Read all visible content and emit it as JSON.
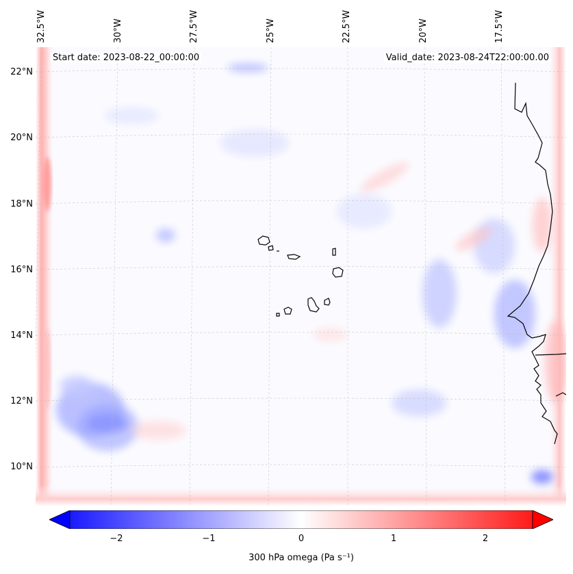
{
  "map": {
    "start_label": "Start date: 2023-08-22_00:00:00",
    "valid_label": "Valid_date: 2023-08-24T22:00:00.00",
    "lon_labels": [
      "32.5°W",
      "30°W",
      "27.5°W",
      "25°W",
      "22.5°W",
      "20°W",
      "17.5°W"
    ],
    "lat_labels": [
      "22°N",
      "20°N",
      "18°N",
      "16°N",
      "14°N",
      "12°N",
      "10°N"
    ]
  },
  "colorbar": {
    "label": "300 hPa omega (Pa s⁻¹)",
    "ticks": [
      "−2",
      "−1",
      "0",
      "1",
      "2"
    ],
    "range": [
      -2.7,
      2.7
    ],
    "cmap": "bwr",
    "color_min": "#0000ff",
    "color_mid": "#ffffff",
    "color_max": "#ff0000"
  }
}
